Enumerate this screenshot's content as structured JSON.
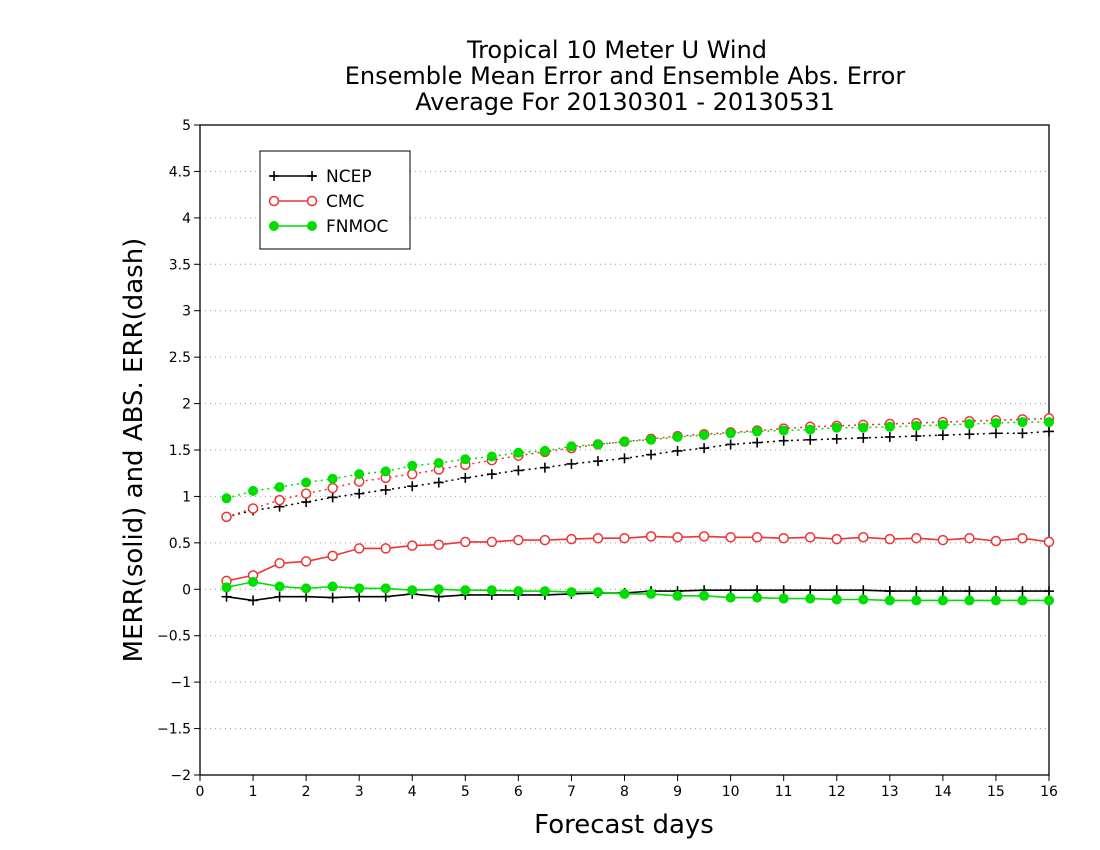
{
  "chart_data": {
    "type": "line",
    "title": [
      "Tropical 10 Meter U Wind",
      "Ensemble Mean Error and Ensemble Abs. Error",
      "Average For 20130301 - 20130531"
    ],
    "xlabel": "Forecast days",
    "ylabel": "MERR(solid) and ABS. ERR(dash)",
    "xlim": [
      0,
      16
    ],
    "ylim": [
      -2,
      5
    ],
    "xticks": [
      0,
      1,
      2,
      3,
      4,
      5,
      6,
      7,
      8,
      9,
      10,
      11,
      12,
      13,
      14,
      15,
      16
    ],
    "yticks": [
      -2,
      -1.5,
      -1,
      -0.5,
      0,
      0.5,
      1,
      1.5,
      2,
      2.5,
      3,
      3.5,
      4,
      4.5,
      5
    ],
    "xtick_labels": [
      "0",
      "1",
      "2",
      "3",
      "4",
      "5",
      "6",
      "7",
      "8",
      "9",
      "10",
      "11",
      "12",
      "13",
      "14",
      "15",
      "16"
    ],
    "ytick_labels": [
      "−2",
      "−1.5",
      "−1",
      "−0.5",
      "0",
      "0.5",
      "1",
      "1.5",
      "2",
      "2.5",
      "3",
      "3.5",
      "4",
      "4.5",
      "5"
    ],
    "grid": "horizontal dotted",
    "legend_position": "top-left",
    "x": [
      0.5,
      1.0,
      1.5,
      2.0,
      2.5,
      3.0,
      3.5,
      4.0,
      4.5,
      5.0,
      5.5,
      6.0,
      6.5,
      7.0,
      7.5,
      8.0,
      8.5,
      9.0,
      9.5,
      10.0,
      10.5,
      11.0,
      11.5,
      12.0,
      12.5,
      13.0,
      13.5,
      14.0,
      14.5,
      15.0,
      15.5,
      16.0
    ],
    "series": [
      {
        "name": "NCEP",
        "color": "#000000",
        "marker": "plus",
        "merr": [
          -0.08,
          -0.12,
          -0.08,
          -0.08,
          -0.09,
          -0.08,
          -0.08,
          -0.05,
          -0.08,
          -0.06,
          -0.06,
          -0.06,
          -0.06,
          -0.05,
          -0.04,
          -0.04,
          -0.02,
          -0.02,
          -0.01,
          -0.01,
          -0.01,
          -0.01,
          -0.01,
          -0.01,
          -0.01,
          -0.02,
          -0.02,
          -0.02,
          -0.02,
          -0.02,
          -0.02,
          -0.02
        ],
        "abs_err": [
          0.78,
          0.85,
          0.89,
          0.94,
          0.99,
          1.03,
          1.07,
          1.11,
          1.15,
          1.2,
          1.24,
          1.28,
          1.31,
          1.35,
          1.38,
          1.41,
          1.45,
          1.49,
          1.52,
          1.56,
          1.58,
          1.6,
          1.61,
          1.62,
          1.63,
          1.64,
          1.65,
          1.66,
          1.67,
          1.68,
          1.68,
          1.7
        ]
      },
      {
        "name": "CMC",
        "color": "#ee3333",
        "marker": "open-circle",
        "merr": [
          0.09,
          0.15,
          0.28,
          0.3,
          0.36,
          0.44,
          0.44,
          0.47,
          0.48,
          0.51,
          0.51,
          0.53,
          0.53,
          0.54,
          0.55,
          0.55,
          0.57,
          0.56,
          0.57,
          0.56,
          0.56,
          0.55,
          0.56,
          0.54,
          0.56,
          0.54,
          0.55,
          0.53,
          0.55,
          0.52,
          0.55,
          0.51
        ],
        "abs_err": [
          0.78,
          0.87,
          0.96,
          1.03,
          1.09,
          1.16,
          1.2,
          1.24,
          1.29,
          1.34,
          1.39,
          1.44,
          1.48,
          1.52,
          1.56,
          1.59,
          1.62,
          1.65,
          1.67,
          1.69,
          1.71,
          1.73,
          1.75,
          1.76,
          1.77,
          1.78,
          1.79,
          1.8,
          1.81,
          1.82,
          1.83,
          1.84
        ]
      },
      {
        "name": "FNMOC",
        "color": "#00dd00",
        "marker": "filled-circle",
        "merr": [
          0.02,
          0.08,
          0.03,
          0.01,
          0.03,
          0.01,
          0.01,
          -0.01,
          0.0,
          -0.01,
          -0.01,
          -0.02,
          -0.02,
          -0.03,
          -0.03,
          -0.05,
          -0.05,
          -0.07,
          -0.07,
          -0.09,
          -0.09,
          -0.1,
          -0.1,
          -0.11,
          -0.11,
          -0.12,
          -0.12,
          -0.12,
          -0.12,
          -0.12,
          -0.12,
          -0.12
        ],
        "abs_err": [
          0.98,
          1.06,
          1.1,
          1.15,
          1.19,
          1.24,
          1.27,
          1.33,
          1.36,
          1.4,
          1.43,
          1.47,
          1.49,
          1.54,
          1.56,
          1.59,
          1.61,
          1.64,
          1.66,
          1.68,
          1.7,
          1.71,
          1.72,
          1.74,
          1.74,
          1.75,
          1.76,
          1.77,
          1.78,
          1.79,
          1.8,
          1.8
        ]
      }
    ]
  }
}
